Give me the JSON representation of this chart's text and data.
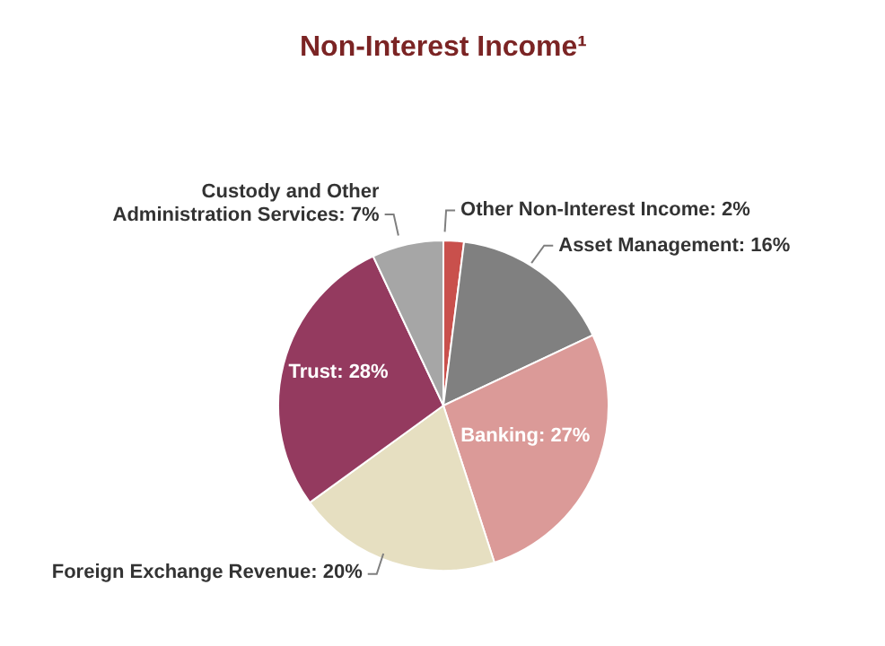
{
  "chart_data": {
    "type": "pie",
    "title": "Non-Interest Income¹",
    "categories": [
      "Other Non-Interest Income",
      "Asset Management",
      "Banking",
      "Foreign Exchange Revenue",
      "Trust",
      "Custody and Other Administration Services"
    ],
    "values": [
      2,
      16,
      27,
      20,
      28,
      7
    ],
    "colors": [
      "#c9504c",
      "#808080",
      "#db9a98",
      "#e6dfc1",
      "#943a5f",
      "#a6a6a6"
    ],
    "value_labels": [
      "2%",
      "16%",
      "27%",
      "20%",
      "28%",
      "7%"
    ]
  }
}
